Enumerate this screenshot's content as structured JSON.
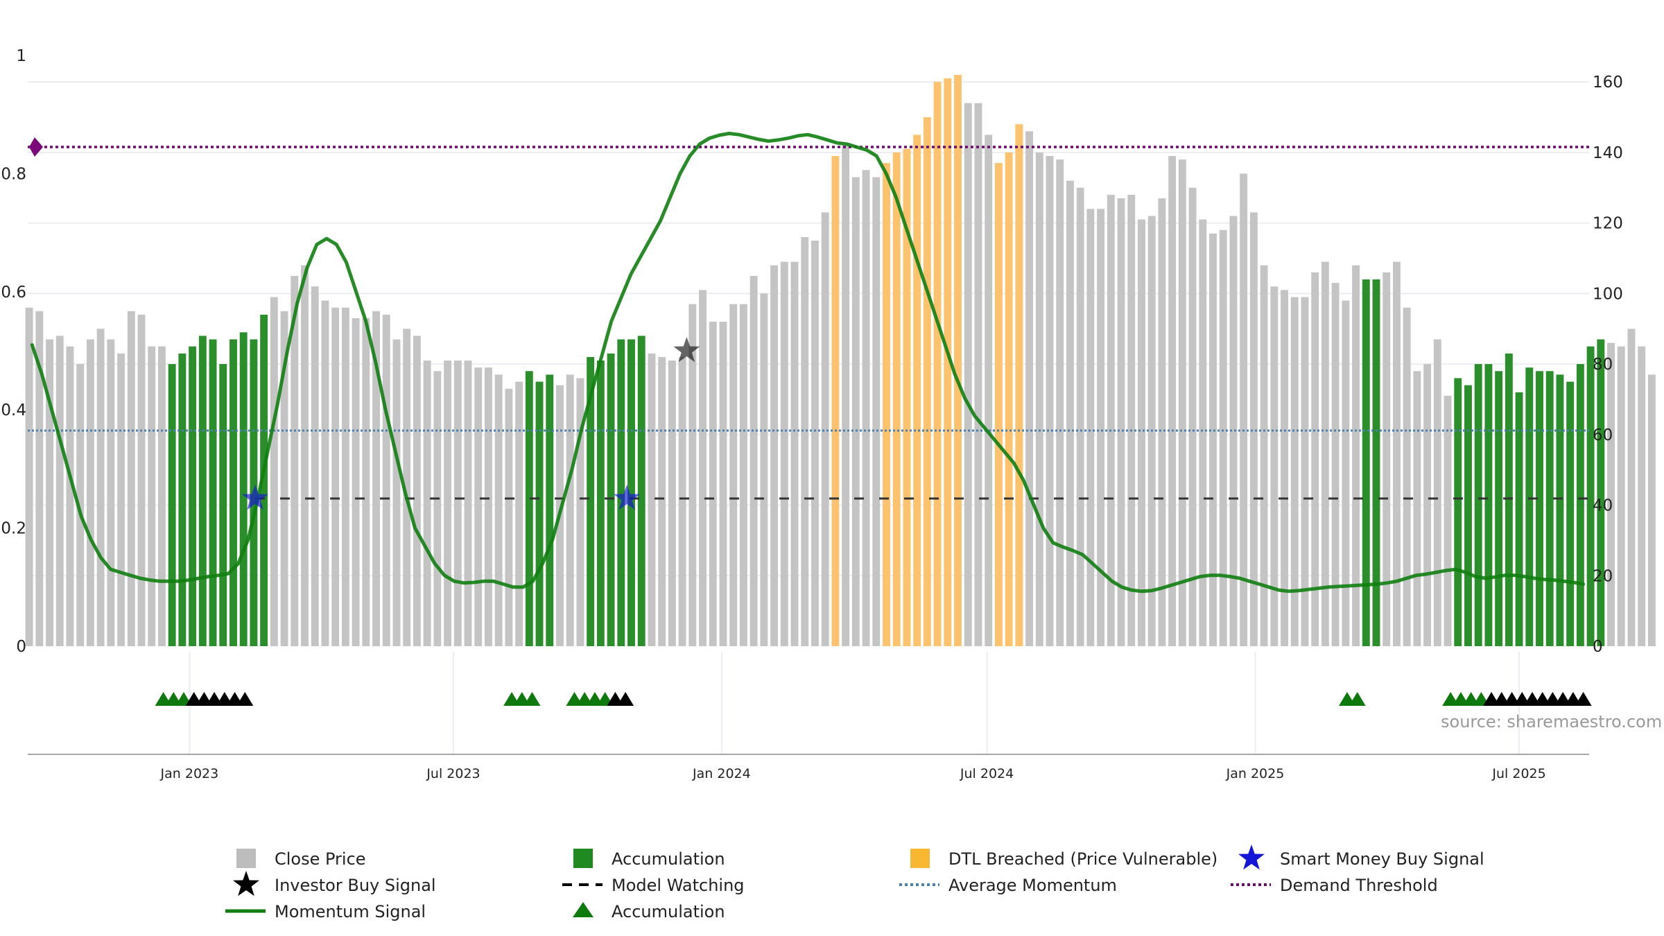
{
  "chart_data": {
    "type": "bar",
    "source_note": "source: sharemaestro.com",
    "left_axis": {
      "ticks": [
        0,
        0.2,
        0.4,
        0.6,
        0.8,
        1
      ],
      "tick_labels": [
        "0",
        "0.2",
        "0.4",
        "0.6",
        "0.8",
        "1"
      ],
      "range": [
        0,
        1
      ]
    },
    "right_axis": {
      "ticks": [
        0,
        20,
        40,
        60,
        80,
        100,
        120,
        140,
        160
      ],
      "tick_labels": [
        "0",
        "20",
        "40",
        "60",
        "80",
        "100",
        "120",
        "140",
        "160"
      ],
      "range": [
        0,
        167.5
      ]
    },
    "x_axis": {
      "start": "2022-09-12",
      "end": "2025-08-18",
      "ticks": [
        "2023-01-01",
        "2023-07-01",
        "2024-01-01",
        "2024-07-01",
        "2025-01-01",
        "2025-07-01"
      ],
      "tick_labels": [
        "Jan 2023",
        "Jul 2023",
        "Jan 2024",
        "Jul 2024",
        "Jan 2025",
        "Jul 2025"
      ]
    },
    "bar_start": "2022-09-13",
    "bar_interval_days": 7,
    "close_prices": [
      96,
      95,
      87,
      88,
      85,
      80,
      87,
      90,
      87,
      83,
      95,
      94,
      85,
      85,
      80,
      83,
      85,
      88,
      87,
      80,
      87,
      89,
      87,
      94,
      99,
      95,
      105,
      108,
      102,
      98,
      96,
      96,
      93,
      93,
      95,
      94,
      87,
      90,
      88,
      81,
      78,
      81,
      81,
      81,
      79,
      79,
      77,
      73,
      75,
      78,
      75,
      77,
      74,
      77,
      76,
      82,
      81,
      83,
      87,
      87,
      88,
      83,
      82,
      81,
      82,
      97,
      101,
      92,
      92,
      97,
      97,
      105,
      100,
      108,
      109,
      109,
      116,
      115,
      123,
      139,
      142,
      133,
      135,
      133,
      137,
      140,
      141,
      145,
      150,
      160,
      161,
      162,
      154,
      154,
      145,
      137,
      140,
      148,
      146,
      140,
      139,
      138,
      132,
      130,
      124,
      124,
      128,
      127,
      128,
      121,
      122,
      127,
      139,
      138,
      130,
      121,
      117,
      118,
      122,
      134,
      123,
      108,
      102,
      101,
      99,
      99,
      106,
      109,
      103,
      98,
      108,
      104,
      104,
      106,
      109,
      96,
      78,
      80,
      87,
      71,
      76,
      74,
      80,
      80,
      78,
      83,
      72,
      79,
      78,
      78,
      77,
      75,
      80,
      85,
      87,
      86,
      85,
      90,
      85,
      77
    ],
    "accumulation_ranges": [
      [
        14,
        23
      ],
      [
        49,
        51
      ],
      [
        55,
        60
      ],
      [
        131,
        132
      ],
      [
        140,
        154
      ]
    ],
    "dtl_breached_ranges": [
      [
        79,
        79
      ],
      [
        84,
        91
      ],
      [
        95,
        97
      ]
    ],
    "momentum": [
      0.51,
      0.46,
      0.4,
      0.34,
      0.28,
      0.22,
      0.18,
      0.15,
      0.13,
      0.125,
      0.12,
      0.115,
      0.112,
      0.11,
      0.11,
      0.11,
      0.112,
      0.115,
      0.118,
      0.12,
      0.123,
      0.14,
      0.18,
      0.25,
      0.33,
      0.41,
      0.5,
      0.58,
      0.64,
      0.68,
      0.69,
      0.68,
      0.65,
      0.6,
      0.55,
      0.48,
      0.4,
      0.33,
      0.26,
      0.2,
      0.17,
      0.14,
      0.12,
      0.11,
      0.107,
      0.108,
      0.11,
      0.11,
      0.105,
      0.1,
      0.1,
      0.11,
      0.14,
      0.18,
      0.24,
      0.3,
      0.37,
      0.43,
      0.49,
      0.55,
      0.59,
      0.63,
      0.66,
      0.69,
      0.72,
      0.76,
      0.8,
      0.83,
      0.85,
      0.86,
      0.865,
      0.868,
      0.866,
      0.862,
      0.858,
      0.855,
      0.857,
      0.86,
      0.864,
      0.866,
      0.862,
      0.857,
      0.852,
      0.85,
      0.845,
      0.84,
      0.83,
      0.8,
      0.76,
      0.71,
      0.66,
      0.61,
      0.56,
      0.51,
      0.46,
      0.42,
      0.39,
      0.37,
      0.35,
      0.33,
      0.31,
      0.28,
      0.24,
      0.2,
      0.175,
      0.168,
      0.162,
      0.155,
      0.14,
      0.125,
      0.11,
      0.1,
      0.095,
      0.093,
      0.094,
      0.098,
      0.103,
      0.108,
      0.113,
      0.118,
      0.12,
      0.12,
      0.118,
      0.115,
      0.11,
      0.105,
      0.1,
      0.095,
      0.093,
      0.094,
      0.096,
      0.098,
      0.1,
      0.101,
      0.102,
      0.103,
      0.104,
      0.105,
      0.107,
      0.11,
      0.115,
      0.12,
      0.122,
      0.125,
      0.128,
      0.13,
      0.125,
      0.118,
      0.115,
      0.117,
      0.12,
      0.12,
      0.118,
      0.115,
      0.113,
      0.112,
      0.11,
      0.108,
      0.105
    ],
    "momentum_span": [
      "2022-09-15",
      "2025-08-14"
    ],
    "average_momentum": 0.365,
    "demand_threshold": 0.845,
    "model_watching": {
      "level": 0.25,
      "from": "2023-02-15",
      "to": "2025-08-18"
    },
    "smart_money_buy_signals": [
      {
        "date": "2023-02-15",
        "value": 0.25
      },
      {
        "date": "2023-10-28",
        "value": 0.25
      }
    ],
    "investor_buy_signals": [
      {
        "date": "2023-12-08",
        "value": 0.5
      }
    ],
    "accumulation_markers": {
      "green": [
        "2022-12-14",
        "2022-12-21",
        "2022-12-28",
        "2023-08-10",
        "2023-08-17",
        "2023-08-24",
        "2023-09-22",
        "2023-09-29",
        "2023-10-06",
        "2023-10-13",
        "2025-03-05",
        "2025-03-12",
        "2025-05-15",
        "2025-05-22",
        "2025-05-29",
        "2025-06-05"
      ],
      "black": [
        "2023-01-04",
        "2023-01-11",
        "2023-01-18",
        "2023-01-25",
        "2023-02-01",
        "2023-02-08",
        "2023-10-20",
        "2023-10-27",
        "2025-06-12",
        "2025-06-19",
        "2025-06-26",
        "2025-07-03",
        "2025-07-10",
        "2025-07-17",
        "2025-07-24",
        "2025-07-31",
        "2025-08-07",
        "2025-08-14"
      ]
    },
    "colors": {
      "close": "#c4c4c4",
      "accumulation": "#2a8f2a",
      "dtl": "#fdc26e",
      "momentum": "#0f7f0f",
      "average": "#4a7fb0",
      "threshold": "#6a0a6a",
      "watching": "#333333",
      "smart_money": "#1515d8",
      "investor": "#111111",
      "marker_green": "#0e7a0e",
      "marker_black": "#000000"
    },
    "legend": [
      {
        "key": "close",
        "label": "Close Price",
        "symbol": "square",
        "color": "#bdbdbd"
      },
      {
        "key": "accum_bar",
        "label": "Accumulation",
        "symbol": "square",
        "color": "#1f8a1f"
      },
      {
        "key": "dtl",
        "label": "DTL Breached (Price Vulnerable)",
        "symbol": "square",
        "color": "#f7b733"
      },
      {
        "key": "smart",
        "label": "Smart Money Buy Signal",
        "symbol": "star",
        "color": "#1515d8"
      },
      {
        "key": "investor",
        "label": "Investor Buy Signal",
        "symbol": "star",
        "color": "#000000"
      },
      {
        "key": "watching",
        "label": "Model Watching",
        "symbol": "dash",
        "color": "#000000"
      },
      {
        "key": "average",
        "label": "Average Momentum",
        "symbol": "dot",
        "color": "#4a7fb0"
      },
      {
        "key": "threshold",
        "label": "Demand Threshold",
        "symbol": "dot",
        "color": "#6a0a6a"
      },
      {
        "key": "momentum",
        "label": "Momentum Signal",
        "symbol": "line",
        "color": "#0f7f0f"
      },
      {
        "key": "accum_marker",
        "label": "Accumulation",
        "symbol": "triangle",
        "color": "#0e7a0e"
      }
    ]
  }
}
